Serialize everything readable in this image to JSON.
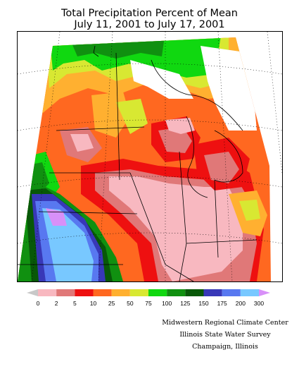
{
  "title_line1": "Total Precipitation Percent of Mean",
  "title_line2": "July 11, 2001 to July 17, 2001",
  "legend": {
    "labels": [
      "0",
      "2",
      "5",
      "10",
      "25",
      "50",
      "75",
      "100",
      "125",
      "150",
      "175",
      "200",
      "300"
    ],
    "colors": [
      "#f8b8c0",
      "#e07878",
      "#ee1010",
      "#ff6820",
      "#ffb030",
      "#d8e832",
      "#10d810",
      "#109010",
      "#085808",
      "#3838b8",
      "#5878f0",
      "#78c8ff"
    ],
    "low_arrow_color": "#c8c8c8",
    "high_arrow_color": "#d890f8"
  },
  "credits": {
    "line1": "Midwestern Regional Climate Center",
    "line2": "Illinois State Water Survey",
    "line3": "Champaign, Illinois"
  }
}
